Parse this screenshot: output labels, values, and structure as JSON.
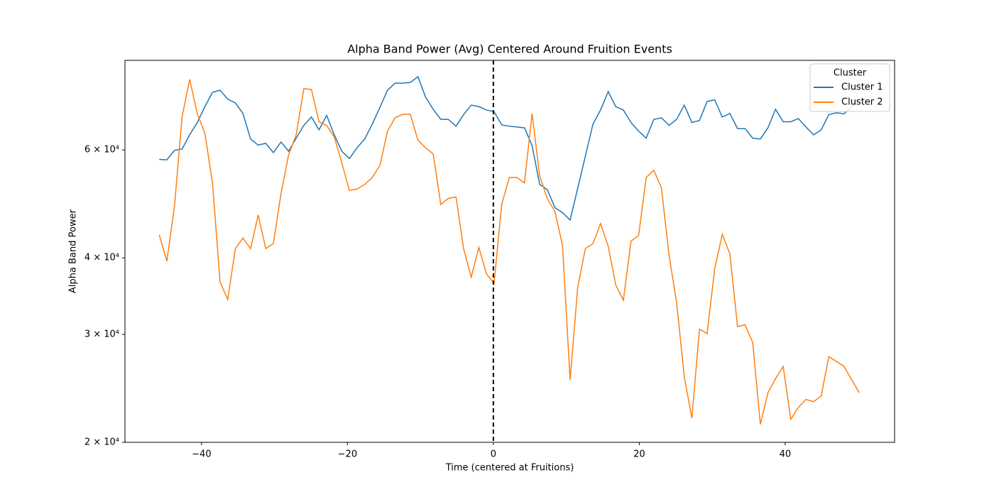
{
  "chart_data": {
    "type": "line",
    "title": "Alpha Band Power (Avg) Centered Around Fruition Events",
    "xlabel": "Time (centered at Fruitions)",
    "ylabel": "Alpha Band Power",
    "x": [
      -45.8,
      -44.76,
      -43.71,
      -42.67,
      -41.63,
      -40.59,
      -39.54,
      -38.5,
      -37.46,
      -36.41,
      -35.37,
      -34.33,
      -33.28,
      -32.24,
      -31.2,
      -30.16,
      -29.11,
      -28.07,
      -27.03,
      -25.98,
      -24.94,
      -23.9,
      -22.85,
      -21.81,
      -20.77,
      -19.73,
      -18.68,
      -17.64,
      -16.6,
      -15.55,
      -14.51,
      -13.47,
      -12.42,
      -11.38,
      -10.34,
      -9.3,
      -8.25,
      -7.21,
      -6.17,
      -5.12,
      -4.08,
      -3.04,
      -1.99,
      -0.95,
      0.09,
      1.14,
      2.18,
      3.22,
      4.26,
      5.31,
      6.35,
      7.39,
      8.44,
      9.48,
      10.52,
      11.57,
      12.61,
      13.65,
      14.69,
      15.74,
      16.78,
      17.82,
      18.87,
      19.91,
      20.95,
      21.99,
      23.04,
      24.08,
      25.12,
      26.17,
      27.21,
      28.25,
      29.3,
      30.34,
      31.38,
      32.42,
      33.47,
      34.51,
      35.55,
      36.6,
      37.64,
      38.68,
      39.73,
      40.77,
      41.81,
      42.85,
      43.9,
      44.94,
      45.98,
      47.03,
      48.07,
      49.11,
      50.16
    ],
    "series": [
      {
        "name": "Cluster 1",
        "color": "#1f77b4",
        "values": [
          57900,
          57800,
          59900,
          60200,
          63500,
          66500,
          70600,
          74500,
          75100,
          72600,
          71600,
          68800,
          62500,
          61100,
          61500,
          59400,
          61800,
          59700,
          62700,
          65800,
          67900,
          64700,
          68300,
          63500,
          59700,
          58100,
          60500,
          62500,
          66100,
          70400,
          75100,
          77100,
          77100,
          77300,
          79000,
          73200,
          69900,
          67300,
          67300,
          65600,
          68500,
          71000,
          70600,
          69700,
          69300,
          65900,
          65600,
          65400,
          65200,
          61000,
          52700,
          51700,
          48300,
          47400,
          46100,
          52000,
          58600,
          66100,
          69700,
          74700,
          70600,
          69700,
          66500,
          64400,
          62700,
          67300,
          67700,
          65800,
          67300,
          71000,
          66500,
          67000,
          72000,
          72400,
          67900,
          68800,
          65000,
          65000,
          62700,
          62500,
          65200,
          69900,
          66700,
          66700,
          67500,
          65400,
          63500,
          64700,
          68500,
          69000,
          68700,
          70600,
          72200
        ]
      },
      {
        "name": "Cluster 2",
        "color": "#ff7f0e",
        "values": [
          43600,
          39500,
          48600,
          67900,
          78200,
          68800,
          63800,
          53000,
          36500,
          34200,
          41400,
          43100,
          41400,
          47000,
          41400,
          42200,
          50900,
          58900,
          63500,
          75500,
          75300,
          66700,
          65800,
          63000,
          57100,
          51500,
          51800,
          52700,
          54100,
          56600,
          64400,
          67700,
          68600,
          68600,
          62200,
          60500,
          59100,
          48900,
          50000,
          50300,
          41400,
          37200,
          41600,
          37700,
          36300,
          48900,
          54100,
          54100,
          53000,
          68800,
          54400,
          50000,
          47600,
          41900,
          25300,
          35900,
          41400,
          42200,
          45500,
          41800,
          36100,
          34100,
          42600,
          43500,
          54100,
          55600,
          52000,
          40400,
          33800,
          25600,
          21900,
          30600,
          30100,
          38400,
          43700,
          40600,
          30900,
          31100,
          29100,
          21400,
          24100,
          25400,
          26600,
          21800,
          22800,
          23500,
          23300,
          23800,
          27600,
          27100,
          26600,
          25300,
          24100
        ]
      }
    ],
    "xlim": [
      -50.5,
      55
    ],
    "xticks": [
      {
        "value": -40,
        "label": "−40"
      },
      {
        "value": -20,
        "label": "−20"
      },
      0,
      20,
      40
    ],
    "ylim": [
      20000,
      84000
    ],
    "yscale": "log",
    "yticks": [
      {
        "value": 20000,
        "label": "2 × 10⁴"
      },
      {
        "value": 30000,
        "label": "3 × 10⁴"
      },
      {
        "value": 40000,
        "label": "4 × 10⁴"
      },
      {
        "value": 60000,
        "label": "6 × 10⁴"
      }
    ],
    "vline": {
      "x": 0,
      "color": "#000000"
    },
    "legend": {
      "title": "Cluster",
      "loc": "upper right"
    },
    "grid": false
  }
}
